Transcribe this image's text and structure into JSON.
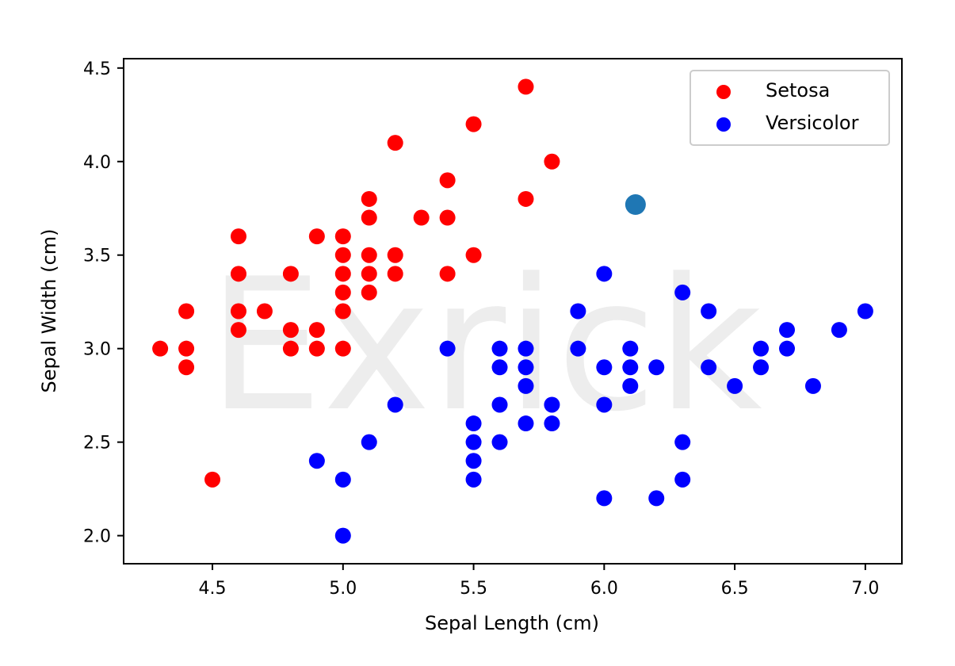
{
  "chart_data": {
    "type": "scatter",
    "xlabel": "Sepal Length (cm)",
    "ylabel": "Sepal Width (cm)",
    "xlim": [
      4.16,
      7.14
    ],
    "ylim": [
      1.85,
      4.55
    ],
    "x_ticks": [
      "4.5",
      "5.0",
      "5.5",
      "6.0",
      "6.5",
      "7.0"
    ],
    "x_tick_values": [
      4.5,
      5.0,
      5.5,
      6.0,
      6.5,
      7.0
    ],
    "y_ticks": [
      "2.0",
      "2.5",
      "3.0",
      "3.5",
      "4.0",
      "4.5"
    ],
    "y_tick_values": [
      2.0,
      2.5,
      3.0,
      3.5,
      4.0,
      4.5
    ],
    "grid": false,
    "legend_position": "top-right",
    "watermark": "Exrick",
    "series": [
      {
        "name": "Setosa",
        "color": "#ff0000",
        "points": [
          [
            4.3,
            3.0
          ],
          [
            4.4,
            3.2
          ],
          [
            4.4,
            3.0
          ],
          [
            4.4,
            2.9
          ],
          [
            4.5,
            2.3
          ],
          [
            4.6,
            3.6
          ],
          [
            4.6,
            3.4
          ],
          [
            4.6,
            3.2
          ],
          [
            4.6,
            3.1
          ],
          [
            4.7,
            3.2
          ],
          [
            4.8,
            3.4
          ],
          [
            4.8,
            3.1
          ],
          [
            4.8,
            3.0
          ],
          [
            4.9,
            3.6
          ],
          [
            4.9,
            3.1
          ],
          [
            4.9,
            3.0
          ],
          [
            5.0,
            3.6
          ],
          [
            5.0,
            3.5
          ],
          [
            5.0,
            3.4
          ],
          [
            5.0,
            3.3
          ],
          [
            5.0,
            3.2
          ],
          [
            5.0,
            3.0
          ],
          [
            5.1,
            3.8
          ],
          [
            5.1,
            3.7
          ],
          [
            5.1,
            3.5
          ],
          [
            5.1,
            3.4
          ],
          [
            5.1,
            3.3
          ],
          [
            5.2,
            4.1
          ],
          [
            5.2,
            3.5
          ],
          [
            5.2,
            3.4
          ],
          [
            5.3,
            3.7
          ],
          [
            5.4,
            3.9
          ],
          [
            5.4,
            3.7
          ],
          [
            5.4,
            3.4
          ],
          [
            5.5,
            4.2
          ],
          [
            5.5,
            3.5
          ],
          [
            5.7,
            4.4
          ],
          [
            5.7,
            3.8
          ],
          [
            5.8,
            4.0
          ]
        ]
      },
      {
        "name": "Versicolor",
        "color": "#0000ff",
        "points": [
          [
            4.9,
            2.4
          ],
          [
            5.0,
            2.3
          ],
          [
            5.0,
            2.0
          ],
          [
            5.1,
            2.5
          ],
          [
            5.2,
            2.7
          ],
          [
            5.4,
            3.0
          ],
          [
            5.5,
            2.6
          ],
          [
            5.5,
            2.5
          ],
          [
            5.5,
            2.4
          ],
          [
            5.5,
            2.3
          ],
          [
            5.6,
            3.0
          ],
          [
            5.6,
            2.9
          ],
          [
            5.6,
            2.7
          ],
          [
            5.6,
            2.5
          ],
          [
            5.7,
            3.0
          ],
          [
            5.7,
            2.9
          ],
          [
            5.7,
            2.8
          ],
          [
            5.7,
            2.6
          ],
          [
            5.8,
            2.7
          ],
          [
            5.8,
            2.6
          ],
          [
            5.9,
            3.2
          ],
          [
            5.9,
            3.0
          ],
          [
            6.0,
            3.4
          ],
          [
            6.0,
            2.9
          ],
          [
            6.0,
            2.7
          ],
          [
            6.0,
            2.2
          ],
          [
            6.1,
            3.0
          ],
          [
            6.1,
            2.9
          ],
          [
            6.1,
            2.8
          ],
          [
            6.2,
            2.9
          ],
          [
            6.2,
            2.2
          ],
          [
            6.3,
            3.3
          ],
          [
            6.3,
            2.5
          ],
          [
            6.3,
            2.3
          ],
          [
            6.4,
            3.2
          ],
          [
            6.4,
            2.9
          ],
          [
            6.5,
            2.8
          ],
          [
            6.6,
            3.0
          ],
          [
            6.6,
            2.9
          ],
          [
            6.7,
            3.1
          ],
          [
            6.7,
            3.0
          ],
          [
            6.8,
            2.8
          ],
          [
            6.9,
            3.1
          ],
          [
            7.0,
            3.2
          ]
        ]
      }
    ],
    "highlight_point": {
      "color": "#1f77b4",
      "point": [
        6.12,
        3.77
      ]
    }
  }
}
